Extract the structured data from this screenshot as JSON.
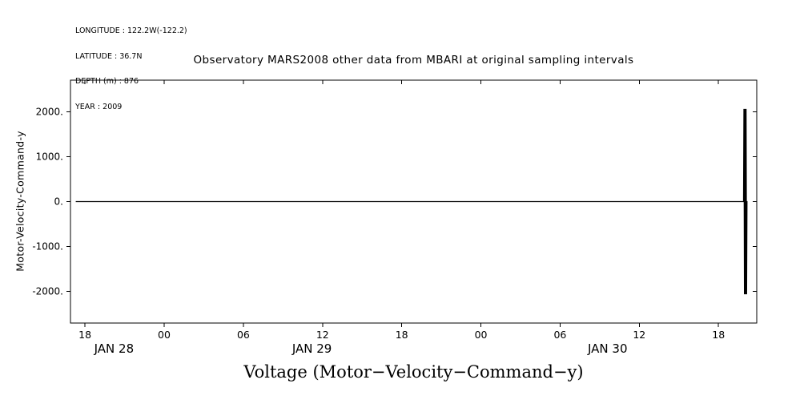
{
  "metadata": {
    "lines": [
      "LONGITUDE : 122.2W(-122.2)",
      "LATITUDE : 36.7N",
      "DEPTH (m) : 876",
      "YEAR : 2009"
    ]
  },
  "chart_data": {
    "type": "line",
    "title": "Observatory MARS2008 other data from MBARI at original sampling intervals",
    "ylabel": "Motor-Velocity-Command-y",
    "xlabel": "Voltage (Motor−Velocity−Command−y)",
    "grid": false,
    "legend": "none",
    "x_unit": "hours since JAN 28 2009 00:00",
    "xlim": [
      16.9,
      68.9
    ],
    "ylim": [
      -2700,
      2700
    ],
    "line_color": "#000000",
    "background_color": "#ffffff",
    "yticks": [
      {
        "value": 2000,
        "label": "2000."
      },
      {
        "value": 1000,
        "label": "1000."
      },
      {
        "value": 0,
        "label": "0."
      },
      {
        "value": -1000,
        "label": "-1000."
      },
      {
        "value": -2000,
        "label": "-2000."
      }
    ],
    "xticks": [
      {
        "hour": 18,
        "label": "18"
      },
      {
        "hour": 24,
        "label": "00"
      },
      {
        "hour": 30,
        "label": "06"
      },
      {
        "hour": 36,
        "label": "12"
      },
      {
        "hour": 42,
        "label": "18"
      },
      {
        "hour": 48,
        "label": "00"
      },
      {
        "hour": 54,
        "label": "06"
      },
      {
        "hour": 60,
        "label": "12"
      },
      {
        "hour": 66,
        "label": "18"
      }
    ],
    "date_labels": [
      {
        "label": "JAN 28",
        "hour": 20.2
      },
      {
        "label": "JAN 29",
        "hour": 35.2
      },
      {
        "label": "JAN 30",
        "hour": 57.6
      }
    ],
    "series": [
      {
        "name": "Motor-Velocity-Command-y",
        "color": "#000000",
        "description": "Flat at 0 V from ~JAN 28 17:20 to ~JAN 30 19:55, then rapid oscillation spike between +2060 and -2060 V ending ~JAN 30 20:10",
        "points": [
          [
            17.3,
            0
          ],
          [
            67.9,
            0
          ],
          [
            67.93,
            2060
          ],
          [
            67.97,
            -2060
          ],
          [
            68.01,
            2060
          ],
          [
            68.05,
            -2060
          ],
          [
            68.09,
            2060
          ],
          [
            68.13,
            -2060
          ],
          [
            68.16,
            0
          ],
          [
            68.2,
            0
          ]
        ]
      }
    ]
  }
}
